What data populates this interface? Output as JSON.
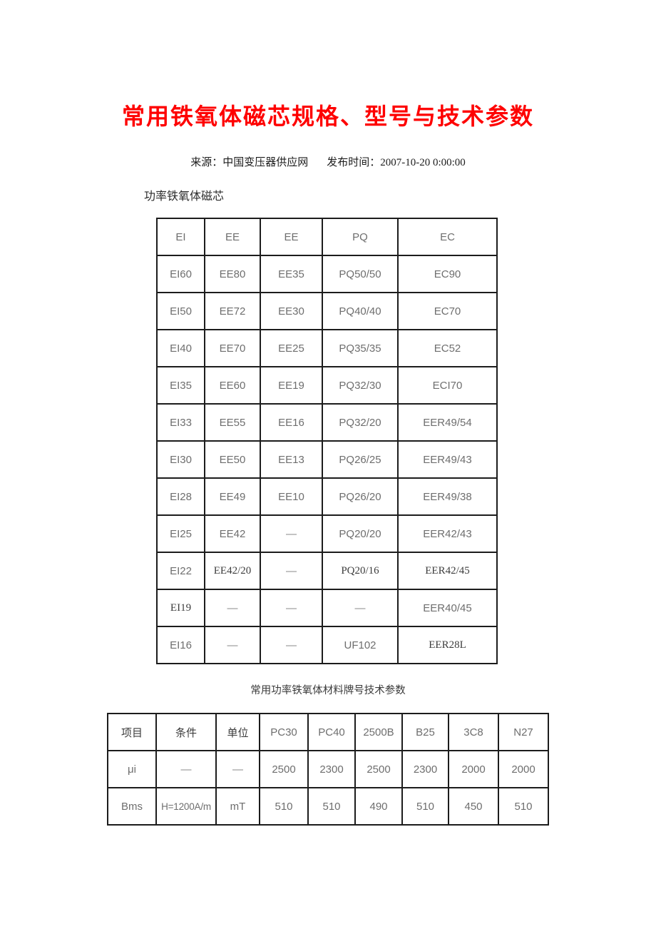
{
  "header": {
    "title": "常用铁氧体磁芯规格、型号与技术参数",
    "title_color": "#fe0000",
    "source": "来源：中国变压器供应网",
    "published": "发布时间：2007-10-20 0:00:00"
  },
  "sections": {
    "cores_heading": "功率铁氧体磁芯",
    "material_caption": "常用功率铁氧体材料牌号技术参数"
  },
  "core_table": {
    "headers": [
      "EI",
      "EE",
      "EE",
      "PQ",
      "EC"
    ],
    "rows": [
      [
        "EI60",
        "EE80",
        "EE35",
        "PQ50/50",
        "EC90"
      ],
      [
        "EI50",
        "EE72",
        "EE30",
        "PQ40/40",
        "EC70"
      ],
      [
        "EI40",
        "EE70",
        "EE25",
        "PQ35/35",
        "EC52"
      ],
      [
        "EI35",
        "EE60",
        "EE19",
        "PQ32/30",
        "ECI70"
      ],
      [
        "EI33",
        "EE55",
        "EE16",
        "PQ32/20",
        "EER49/54"
      ],
      [
        "EI30",
        "EE50",
        "EE13",
        "PQ26/25",
        "EER49/43"
      ],
      [
        "EI28",
        "EE49",
        "EE10",
        "PQ26/20",
        "EER49/38"
      ],
      [
        "EI25",
        "EE42",
        "—",
        "PQ20/20",
        "EER42/43"
      ],
      [
        "EI22",
        "EE42/20",
        "—",
        "PQ20/16",
        "EER42/45"
      ],
      [
        "EI19",
        "—",
        "—",
        "—",
        "EER40/45"
      ],
      [
        "EI16",
        "—",
        "—",
        "UF102",
        "EER28L"
      ]
    ],
    "serif_cells": [
      [
        8,
        1
      ],
      [
        8,
        3
      ],
      [
        8,
        4
      ],
      [
        9,
        0
      ],
      [
        10,
        4
      ]
    ]
  },
  "material_table": {
    "headers": [
      "项目",
      "条件",
      "单位",
      "PC30",
      "PC40",
      "2500B",
      "B25",
      "3C8",
      "N27"
    ],
    "serif_headers": [
      0,
      1,
      2
    ],
    "rows": [
      [
        "μi",
        "—",
        "—",
        "2500",
        "2300",
        "2500",
        "2300",
        "2000",
        "2000"
      ],
      [
        "Bms",
        "H=1200A/m",
        "mT",
        "510",
        "510",
        "490",
        "510",
        "450",
        "510"
      ]
    ]
  }
}
